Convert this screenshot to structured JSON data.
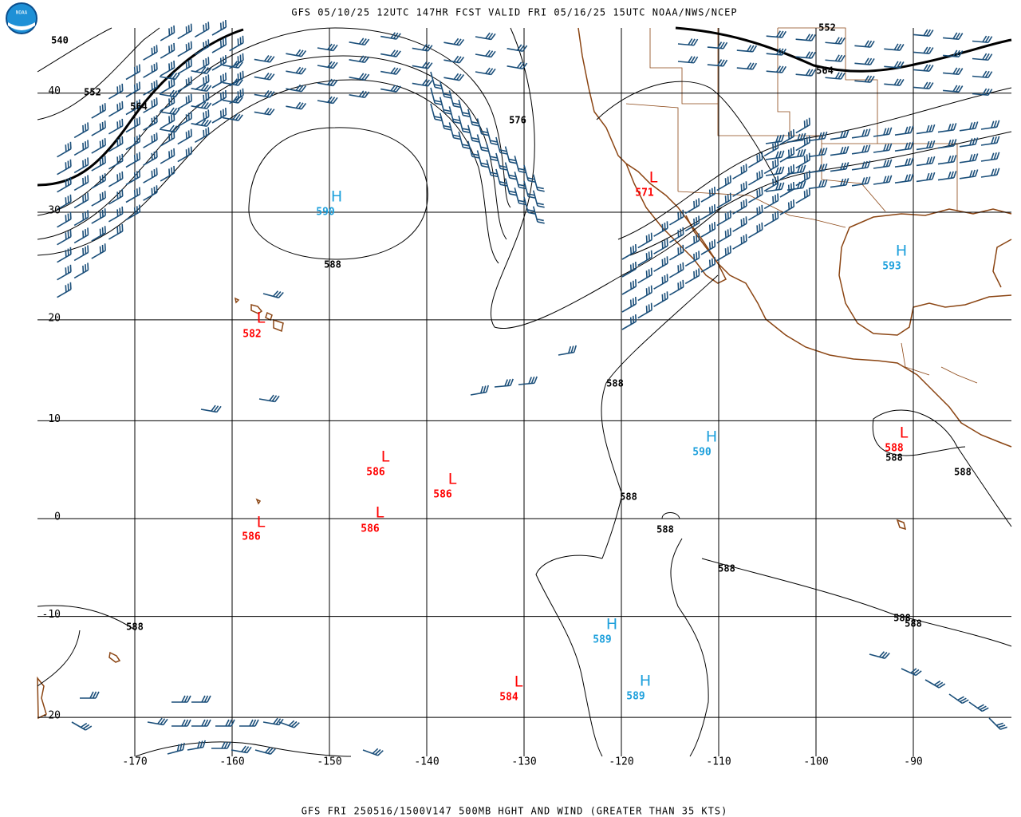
{
  "header": {
    "logo": "NOAA",
    "title": "GFS 05/10/25 12UTC 147HR FCST VALID FRI 05/16/25 15UTC NOAA/NWS/NCEP"
  },
  "footer": "GFS FRI 250516/1500V147 500MB HGHT AND WIND (GREATER THAN 35 KTS)",
  "map": {
    "lat_labels": [
      40,
      30,
      20,
      10,
      0,
      -10,
      -20
    ],
    "lon_labels": [
      -170,
      -160,
      -150,
      -140,
      -130,
      -120,
      -110,
      -100,
      -90
    ],
    "centers": [
      {
        "letter": "H",
        "value": "590",
        "color": "#1ea0dc"
      },
      {
        "letter": "L",
        "value": "582",
        "color": "#ff0000"
      },
      {
        "letter": "L",
        "value": "571",
        "color": "#ff0000"
      },
      {
        "letter": "H",
        "value": "593",
        "color": "#1ea0dc"
      },
      {
        "letter": "H",
        "value": "590",
        "color": "#1ea0dc"
      },
      {
        "letter": "L",
        "value": "588",
        "color": "#ff0000"
      },
      {
        "letter": "L",
        "value": "586",
        "color": "#ff0000"
      },
      {
        "letter": "L",
        "value": "586",
        "color": "#ff0000"
      },
      {
        "letter": "L",
        "value": "586",
        "color": "#ff0000"
      },
      {
        "letter": "L",
        "value": "586",
        "color": "#ff0000"
      },
      {
        "letter": "H",
        "value": "589",
        "color": "#1ea0dc"
      },
      {
        "letter": "H",
        "value": "589",
        "color": "#1ea0dc"
      },
      {
        "letter": "L",
        "value": "584",
        "color": "#ff0000"
      }
    ],
    "contour_labels": [
      "540",
      "552",
      "564",
      "576",
      "588",
      "588",
      "588",
      "588",
      "588",
      "588",
      "588",
      "588",
      "588",
      "588",
      "552",
      "564"
    ]
  }
}
